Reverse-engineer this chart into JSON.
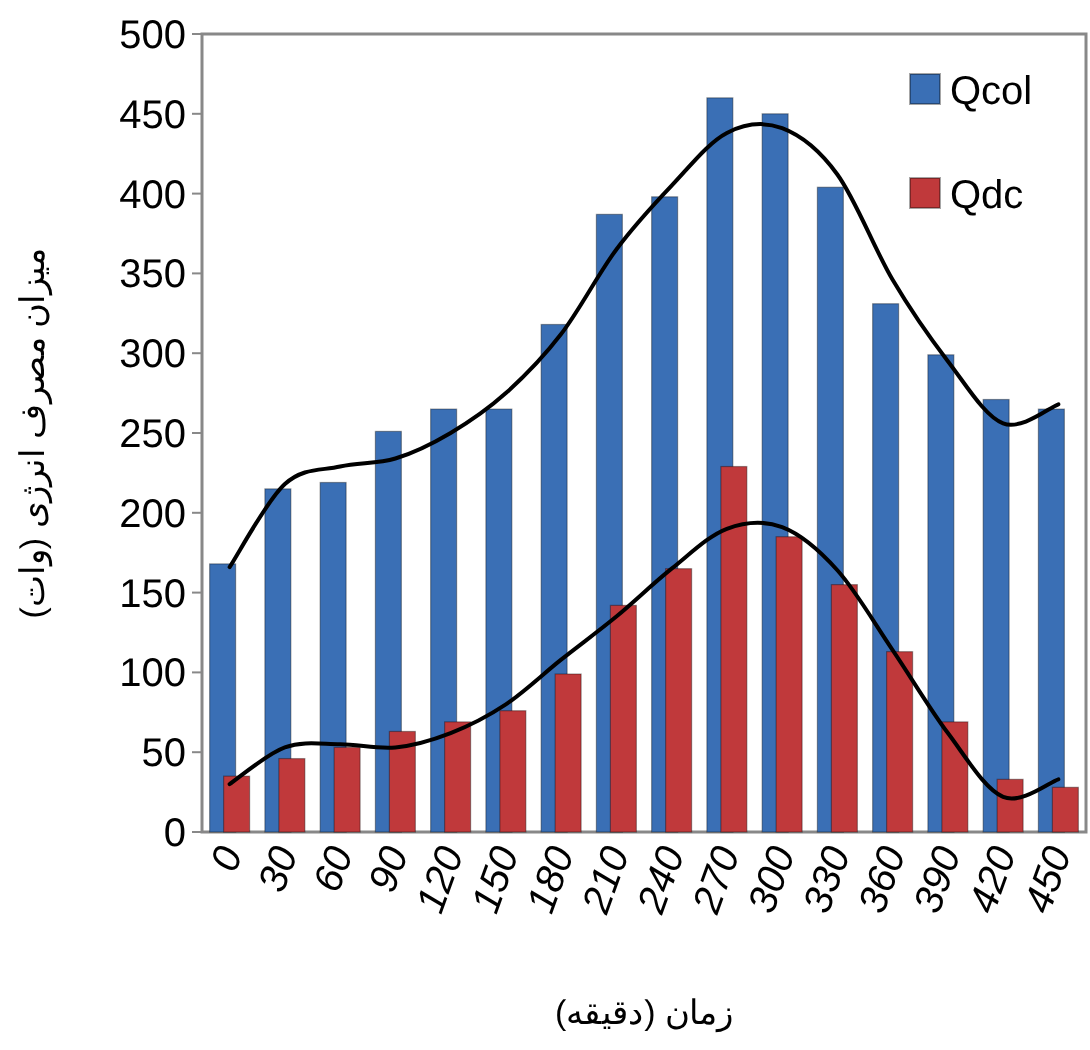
{
  "chart_data": {
    "type": "bar",
    "xlabel": "زمان (دقیقه)",
    "ylabel": "میزان مصرف انرژی (وات)",
    "categories": [
      "0",
      "30",
      "60",
      "90",
      "120",
      "150",
      "180",
      "210",
      "240",
      "270",
      "300",
      "330",
      "360",
      "390",
      "420",
      "450"
    ],
    "ylim": [
      0,
      500
    ],
    "yticks": [
      0,
      50,
      100,
      150,
      200,
      250,
      300,
      350,
      400,
      450,
      500
    ],
    "grid": false,
    "legend": "top right",
    "series": [
      {
        "name": "Qcol",
        "color": "#3a6fb5",
        "values": [
          168,
          215,
          219,
          251,
          265,
          265,
          318,
          387,
          398,
          460,
          450,
          404,
          331,
          299,
          271,
          265
        ]
      },
      {
        "name": "Qdc",
        "color": "#c0393b",
        "values": [
          35,
          46,
          53,
          63,
          69,
          76,
          99,
          142,
          165,
          229,
          185,
          155,
          113,
          69,
          33,
          28
        ]
      },
      {
        "type": "line",
        "color": "#000000",
        "values": [
          166,
          218,
          229,
          234,
          250,
          275,
          312,
          365,
          405,
          438,
          441,
          412,
          346,
          295,
          256,
          268
        ]
      },
      {
        "type": "line",
        "color": "#000000",
        "values": [
          30,
          53,
          55,
          53,
          62,
          80,
          108,
          135,
          165,
          190,
          191,
          164,
          114,
          62,
          22,
          33
        ]
      }
    ]
  }
}
